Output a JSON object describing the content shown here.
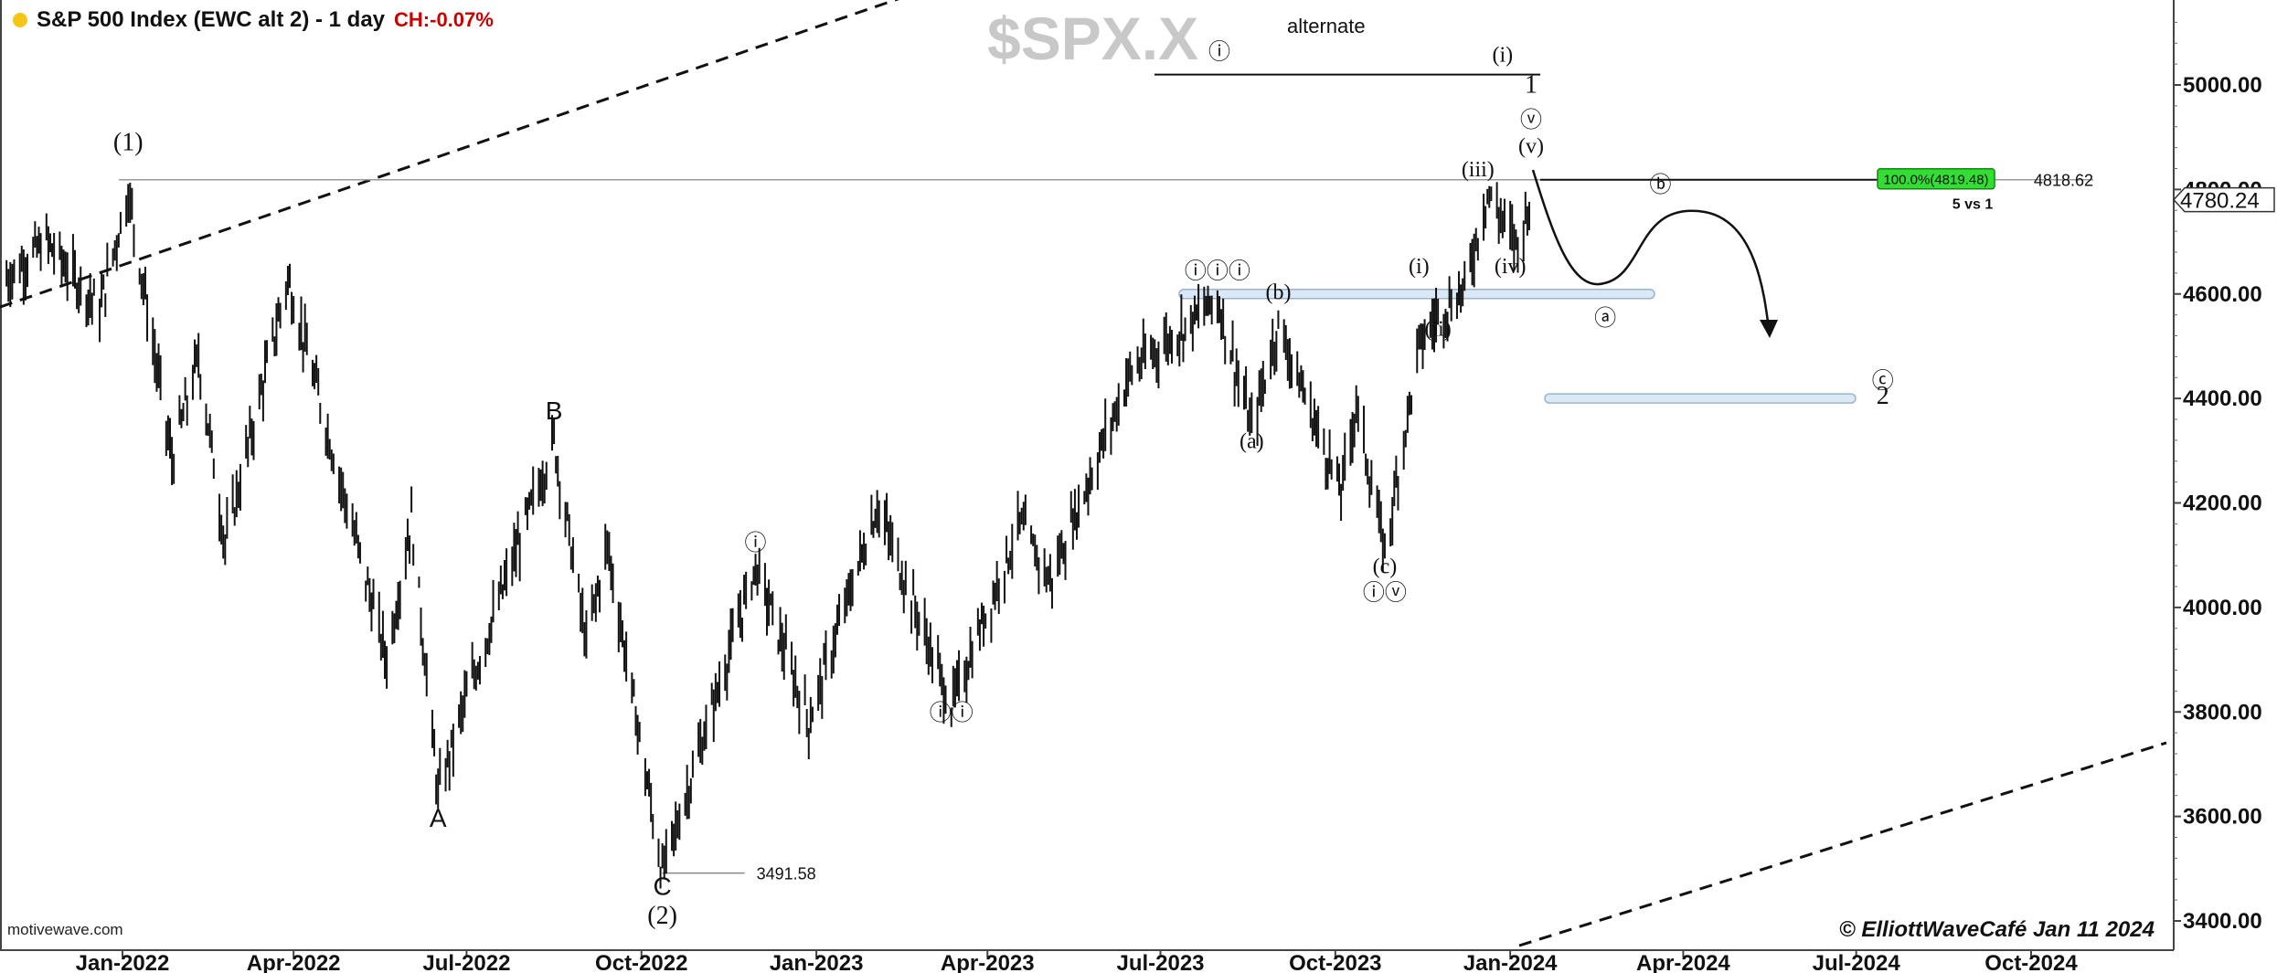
{
  "header": {
    "title": "S&P 500 Index (EWC alt 2) - 1 day",
    "change": "CH:-0.07%",
    "watermark": "$SPX.X",
    "alternate": "alternate",
    "source": "motivewave.com",
    "copyright": "© ElliottWaveCafé Jan 11 2024"
  },
  "colors": {
    "bars": "#111111",
    "dot": "#f5c518",
    "change": "#cc0000",
    "target": "#33dd33",
    "zone": "#dbe8f5"
  },
  "chart_data": {
    "type": "bar",
    "title": "S&P 500 Index (EWC alt 2) - 1 day",
    "xlabel": "",
    "ylabel": "",
    "ylim": [
      3370,
      5170
    ],
    "y_ticks": [
      "3400.00",
      "3600.00",
      "3800.00",
      "4000.00",
      "4200.00",
      "4400.00",
      "4600.00",
      "4800.00",
      "5000.00"
    ],
    "x_ticks": [
      "Jan-2022",
      "Apr-2022",
      "Jul-2022",
      "Oct-2022",
      "Jan-2023",
      "Apr-2023",
      "Jul-2023",
      "Oct-2023",
      "Jan-2024",
      "Apr-2024",
      "Jul-2024",
      "Oct-2024"
    ],
    "last_price": "4780.24",
    "levels": {
      "high_label": "4818.62",
      "low_label": "3491.58",
      "target_label": "100.0%(4819.48)",
      "target_note": "5 vs 1"
    },
    "path": [
      [
        "2021-11-01",
        4630
      ],
      [
        "2021-11-22",
        4700
      ],
      [
        "2021-12-20",
        4570
      ],
      [
        "2022-01-04",
        4796
      ],
      [
        "2022-01-27",
        4280
      ],
      [
        "2022-02-10",
        4480
      ],
      [
        "2022-02-24",
        4120
      ],
      [
        "2022-03-29",
        4630
      ],
      [
        "2022-05-20",
        3900
      ],
      [
        "2022-06-02",
        4170
      ],
      [
        "2022-06-16",
        3640
      ],
      [
        "2022-07-01",
        3830
      ],
      [
        "2022-08-16",
        4320
      ],
      [
        "2022-09-02",
        3930
      ],
      [
        "2022-09-13",
        4120
      ],
      [
        "2022-10-12",
        3491
      ],
      [
        "2022-11-30",
        4080
      ],
      [
        "2022-12-28",
        3780
      ],
      [
        "2023-02-02",
        4195
      ],
      [
        "2023-03-13",
        3810
      ],
      [
        "2023-04-18",
        4160
      ],
      [
        "2023-05-04",
        4050
      ],
      [
        "2023-06-15",
        4450
      ],
      [
        "2023-07-31",
        4590
      ],
      [
        "2023-08-18",
        4340
      ],
      [
        "2023-09-01",
        4540
      ],
      [
        "2023-10-04",
        4220
      ],
      [
        "2023-10-12",
        4390
      ],
      [
        "2023-10-27",
        4103
      ],
      [
        "2023-11-14",
        4500
      ],
      [
        "2023-11-24",
        4560
      ],
      [
        "2023-12-08",
        4610
      ],
      [
        "2023-12-20",
        4793
      ],
      [
        "2024-01-05",
        4690
      ],
      [
        "2024-01-11",
        4780
      ]
    ],
    "projection": [
      [
        "2024-01-12",
        4800
      ],
      [
        "2024-01-22",
        4720
      ],
      [
        "2024-02-10",
        4580
      ],
      [
        "2024-03-01",
        4590
      ],
      [
        "2024-04-01",
        4680
      ],
      [
        "2024-04-25",
        4620
      ],
      [
        "2024-05-20",
        4420
      ]
    ],
    "wave_labels": [
      {
        "text": "(1)",
        "date": "2022-01-04",
        "price": 4875
      },
      {
        "text": "B",
        "date": "2022-08-16",
        "price": 4360
      },
      {
        "text": "A",
        "date": "2022-06-16",
        "price": 3580
      },
      {
        "text": "C",
        "date": "2022-10-12",
        "price": 3450
      },
      {
        "text": "(2)",
        "date": "2022-10-12",
        "price": 3395
      },
      {
        "text": "ⓘ",
        "date": "2022-11-30",
        "price": 4110
      },
      {
        "text": "ⓘⓘ",
        "date": "2023-03-13",
        "price": 3785
      },
      {
        "text": "ⓘⓘⓘ",
        "date": "2023-07-31",
        "price": 4630
      },
      {
        "text": "(a)",
        "date": "2023-08-18",
        "price": 4305
      },
      {
        "text": "(b)",
        "date": "2023-09-01",
        "price": 4590
      },
      {
        "text": "(c)",
        "date": "2023-10-27",
        "price": 4065
      },
      {
        "text": "ⓘⓥ",
        "date": "2023-10-27",
        "price": 4015
      },
      {
        "text": "(i)",
        "date": "2023-11-14",
        "price": 4640
      },
      {
        "text": "(ii)",
        "date": "2023-11-24",
        "price": 4520
      },
      {
        "text": "(iii)",
        "date": "2023-12-15",
        "price": 4825
      },
      {
        "text": "(iv)",
        "date": "2024-01-01",
        "price": 4640
      },
      {
        "text": "(v)",
        "date": "2024-01-12",
        "price": 4870
      },
      {
        "text": "ⓥ",
        "date": "2024-01-12",
        "price": 4920
      },
      {
        "text": "1",
        "date": "2024-01-12",
        "price": 4985
      },
      {
        "text": "ⓘ",
        "date": "2023-08-01",
        "price": 5050
      },
      {
        "text": "(i)",
        "date": "2023-12-28",
        "price": 5045
      },
      {
        "text": "ⓑ",
        "date": "2024-03-20",
        "price": 4795
      },
      {
        "text": "ⓐ",
        "date": "2024-02-20",
        "price": 4540
      },
      {
        "text": "ⓒ",
        "date": "2024-07-15",
        "price": 4420
      },
      {
        "text": "2",
        "date": "2024-07-15",
        "price": 4390
      }
    ]
  }
}
